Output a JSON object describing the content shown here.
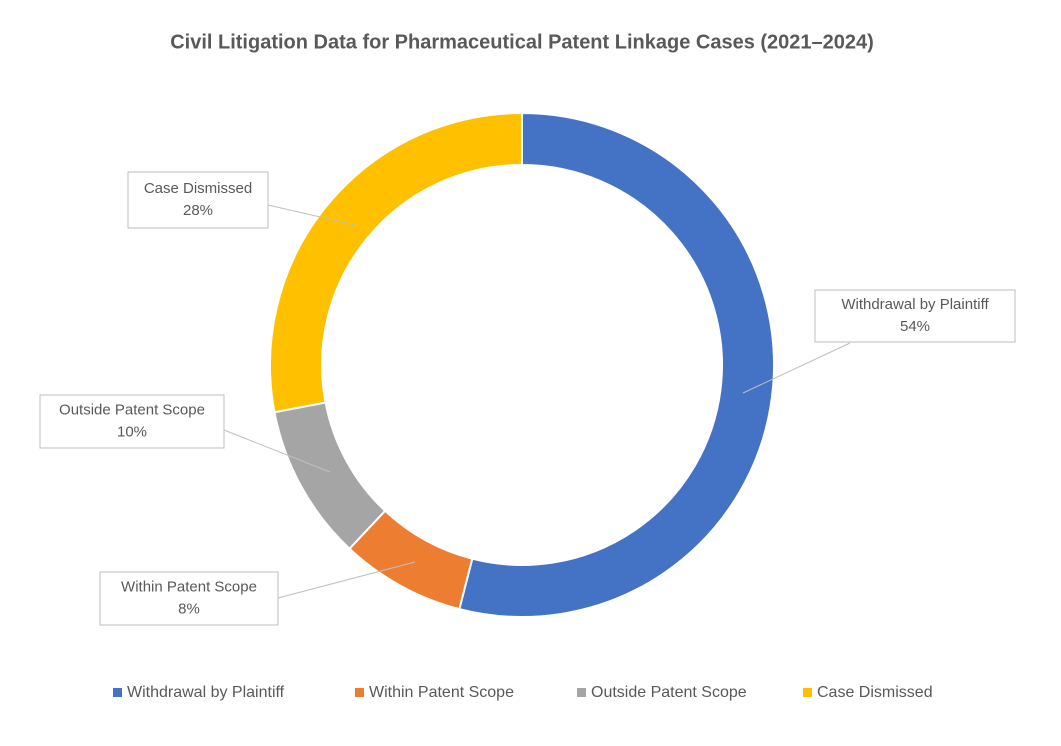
{
  "chart_data": {
    "type": "donut",
    "title": "Civil Litigation Data for Pharmaceutical  Patent Linkage Cases (2021–2024)",
    "categories": [
      "Withdrawal by Plaintiff",
      "Within Patent Scope",
      "Outside Patent Scope",
      "Case Dismissed"
    ],
    "values": [
      54,
      8,
      10,
      28
    ],
    "value_labels": [
      "54%",
      "8%",
      "10%",
      "28%"
    ],
    "colors": [
      "#4472c4",
      "#ed7d31",
      "#a5a5a5",
      "#ffc000"
    ],
    "legend": "bottom"
  }
}
